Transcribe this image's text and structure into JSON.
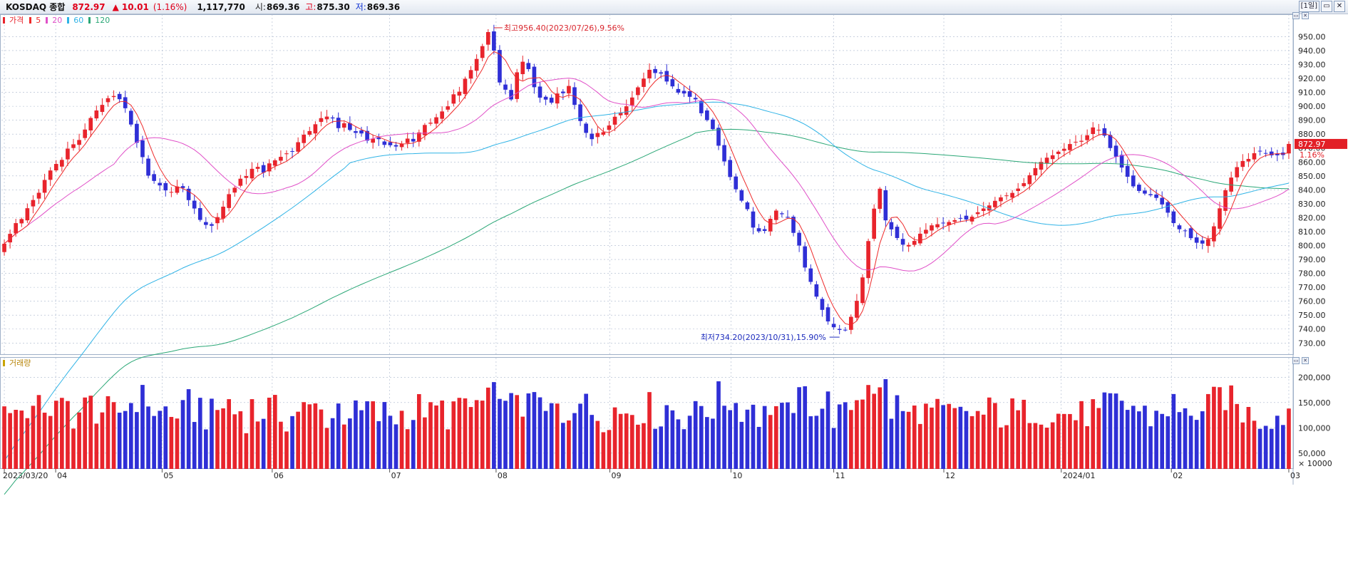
{
  "window": {
    "symbol": "KOSDAQ 종합",
    "price": "872.97",
    "change_arrow": "▲",
    "change": "10.01",
    "change_pct": "(1.16%)",
    "volume": "1,117,770",
    "open_label": "시:",
    "open": "869.36",
    "high_label": "고:",
    "high": "875.30",
    "low_label": "저:",
    "low": "869.36",
    "period_button": "[1일]",
    "restore_icon": "restore-icon",
    "close_icon": "close-icon"
  },
  "colors": {
    "up": "#e8242c",
    "down": "#2f2fd6",
    "ma5": "#ee2a2a",
    "ma20": "#e050c8",
    "ma60": "#2fb3e6",
    "ma120": "#2aa776",
    "grid": "#a9b6cc",
    "annot_high": "#d9262e",
    "annot_low": "#1c2bbd"
  },
  "legend": {
    "price_label": "가격",
    "ma": [
      {
        "label": "5",
        "color": "#ee2a2a"
      },
      {
        "label": "20",
        "color": "#e050c8"
      },
      {
        "label": "60",
        "color": "#2fb3e6"
      },
      {
        "label": "120",
        "color": "#2aa776"
      }
    ],
    "volume_label": "거래량"
  },
  "annotations": {
    "high": "최고956.40(2023/07/26),9.56%",
    "low": "최저734.20(2023/10/31),15.90%"
  },
  "chart_data": [
    {
      "type": "candlestick",
      "title": "KOSDAQ 종합",
      "ylim": [
        724,
        962
      ],
      "yticks": [
        "730.00",
        "740.00",
        "750.00",
        "760.00",
        "770.00",
        "780.00",
        "790.00",
        "800.00",
        "810.00",
        "820.00",
        "830.00",
        "840.00",
        "850.00",
        "860.00",
        "870.00",
        "880.00",
        "890.00",
        "900.00",
        "910.00",
        "920.00",
        "930.00",
        "940.00",
        "950.00"
      ],
      "last_price_tag": "872.97",
      "last_change_tag": "1.16%",
      "x_labels": [
        "2023/03/20",
        "04",
        "05",
        "06",
        "07",
        "08",
        "09",
        "10",
        "11",
        "12",
        "2024/01",
        "02",
        "03"
      ],
      "x_label_dates": [
        "2023-03-20",
        "2023-04-03",
        "2023-05-02",
        "2023-06-01",
        "2023-07-03",
        "2023-08-01",
        "2023-09-01",
        "2023-10-04",
        "2023-11-01",
        "2023-12-01",
        "2024-01-02",
        "2024-02-01",
        "2024-03-04"
      ],
      "daily_close": {
        "dates_range": [
          "2023-03-20",
          "2024-03-04"
        ],
        "close": [
          801.3,
          808.4,
          816.1,
          819.0,
          826.8,
          832.7,
          837.9,
          847.1,
          853.9,
          858.6,
          861.5,
          869.6,
          872.7,
          875.8,
          883.3,
          891.6,
          897.0,
          901.0,
          905.8,
          907.4,
          905.1,
          898.6,
          886.9,
          873.8,
          863.5,
          850.2,
          846.4,
          843.2,
          839.6,
          838.5,
          842.4,
          841.3,
          832.6,
          826.6,
          818.4,
          814.8,
          814.2,
          820.4,
          827.9,
          836.9,
          841.5,
          848.0,
          849.9,
          855.1,
          856.5,
          852.3,
          859.0,
          861.2,
          863.7,
          866.2,
          867.5,
          874.2,
          879.6,
          882.2,
          887.1,
          891.5,
          892.6,
          891.3,
          884.3,
          887.8,
          883.0,
          880.9,
          880.5,
          875.3,
          876.7,
          876.4,
          872.3,
          872.0,
          871.1,
          873.2,
          876.8,
          874.7,
          881.2,
          886.6,
          888.2,
          892.1,
          896.3,
          900.0,
          908.6,
          910.5,
          919.8,
          926.0,
          934.0,
          943.2,
          953.3,
          940.0,
          917.1,
          911.9,
          904.9,
          924.4,
          932.0,
          926.7,
          913.7,
          906.2,
          904.8,
          902.6,
          909.2,
          909.4,
          914.6,
          901.0,
          889.4,
          880.9,
          876.4,
          880.8,
          881.4,
          886.2,
          892.5,
          895.6,
          900.0,
          906.3,
          913.6,
          919.9,
          926.2,
          923.9,
          923.5,
          917.8,
          914.3,
          909.8,
          909.2,
          906.8,
          905.0,
          895.0,
          890.1,
          883.6,
          871.7,
          860.4,
          849.2,
          840.4,
          832.2,
          826.1,
          812.9,
          810.2,
          810.5,
          819.2,
          825.1,
          822.5,
          820.5,
          809.1,
          800.0,
          784.2,
          773.9,
          763.3,
          753.8,
          745.5,
          741.3,
          739.4,
          739.5,
          748.8,
          760.3,
          777.1,
          803.2,
          826.5,
          840.8,
          818.1,
          811.6,
          805.4,
          800.6,
          800.4,
          803.3,
          808.5,
          811.3,
          814.5,
          815.3,
          815.9,
          816.9,
          818.2,
          819.7,
          818.7,
          820.7,
          823.9,
          826.6,
          828.8,
          832.1,
          834.6,
          836.0,
          837.8,
          840.9,
          844.8,
          850.5,
          855.6,
          860.0,
          863.1,
          864.8,
          867.4,
          869.5,
          872.9,
          874.5,
          875.2,
          879.2,
          884.8,
          883.1,
          878.9,
          870.0,
          863.8,
          856.0,
          849.4,
          842.5,
          839.2,
          837.3,
          836.1,
          834.2,
          829.5,
          823.6,
          816.1,
          811.7,
          810.8,
          805.3,
          802.0,
          801.4,
          804.5,
          813.8,
          826.7,
          839.7,
          848.8,
          856.3,
          860.7,
          862.2,
          866.3,
          868.0,
          866.2,
          864.8,
          864.8,
          865.0,
          872.97
        ]
      }
    },
    {
      "type": "bar",
      "title": "거래량",
      "ylim": [
        30000,
        230000
      ],
      "yticks": [
        "50,000",
        "100,000",
        "150,000",
        "200,000"
      ],
      "unit_label": "× 10000"
    }
  ]
}
